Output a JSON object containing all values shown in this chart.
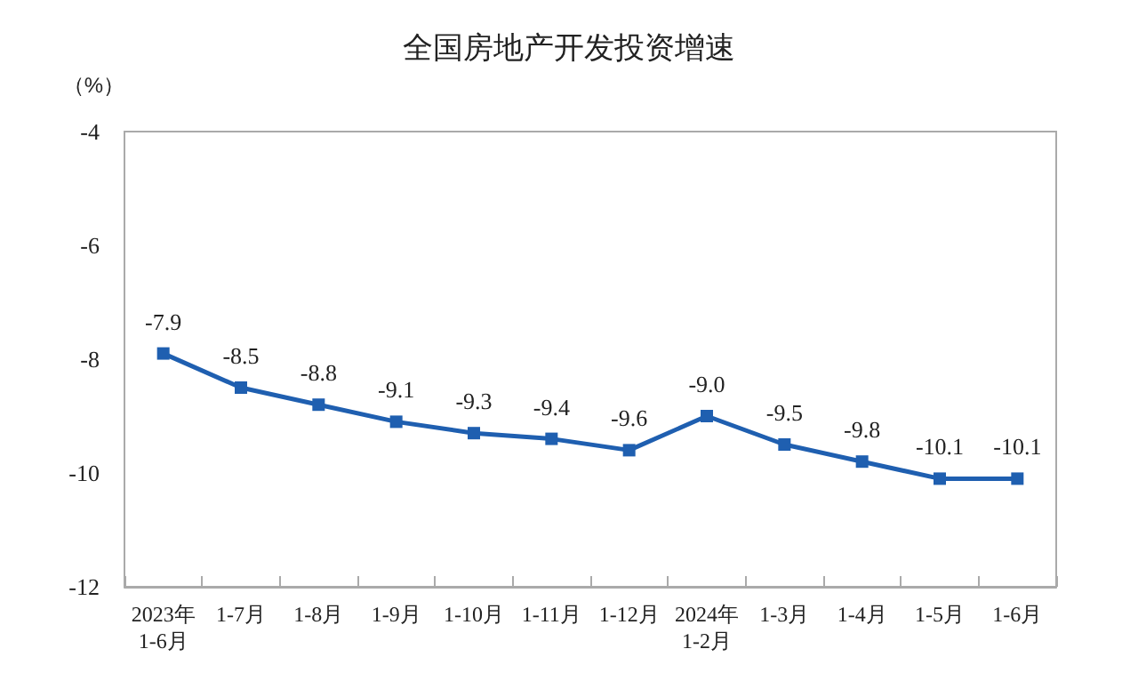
{
  "chart_data": {
    "type": "line",
    "title": "全国房地产开发投资增速",
    "ylabel": "（%）",
    "categories": [
      "2023年\n1-6月",
      "1-7月",
      "1-8月",
      "1-9月",
      "1-10月",
      "1-11月",
      "1-12月",
      "2024年\n1-2月",
      "1-3月",
      "1-4月",
      "1-5月",
      "1-6月"
    ],
    "series": [
      {
        "color": "#1f5fb0",
        "values": [
          -7.9,
          -8.5,
          -8.8,
          -9.1,
          -9.3,
          -9.4,
          -9.6,
          -9.0,
          -9.5,
          -9.8,
          -10.1,
          -10.1
        ],
        "value_labels": [
          "-7.9",
          "-8.5",
          "-8.8",
          "-9.1",
          "-9.3",
          "-9.4",
          "-9.6",
          "-9.0",
          "-9.5",
          "-9.8",
          "-10.1",
          "-10.1"
        ]
      }
    ],
    "ylim": [
      -12,
      -4
    ],
    "yticks": [
      -12,
      -10,
      -8,
      -6,
      -4
    ],
    "marker": "square",
    "line_style": "solid"
  }
}
